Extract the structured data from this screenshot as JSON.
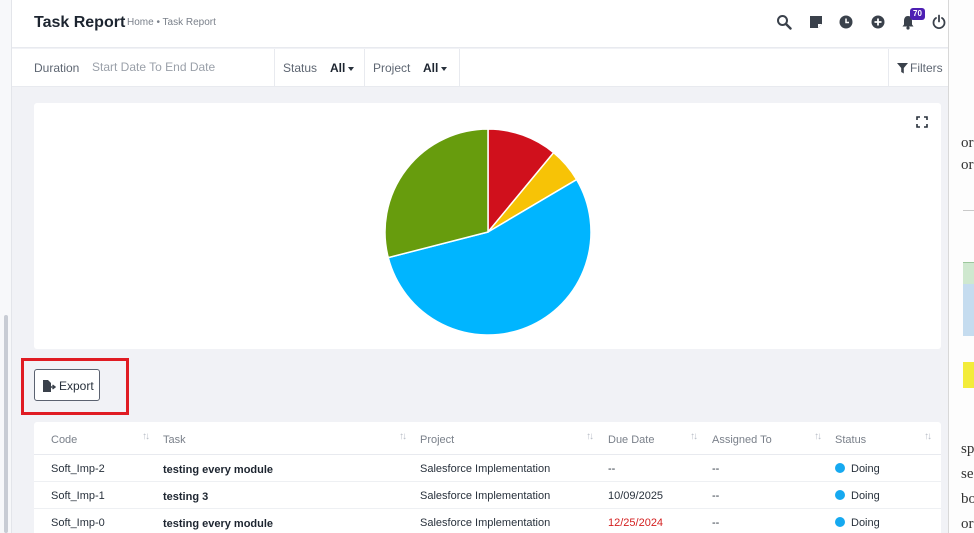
{
  "header": {
    "title": "Task Report",
    "breadcrumb": "Home • Task Report",
    "notification_count": "70"
  },
  "filters": {
    "duration_label": "Duration",
    "duration_placeholder": "Start Date To End Date",
    "status_label": "Status",
    "status_value": "All",
    "project_label": "Project",
    "project_value": "All",
    "filters_label": "Filters"
  },
  "chart_data": {
    "type": "pie",
    "title": "",
    "slices": [
      {
        "label": "red",
        "value": 11,
        "color": "#d0101c"
      },
      {
        "label": "yellow",
        "value": 5.5,
        "color": "#f7c306"
      },
      {
        "label": "blue",
        "value": 54.5,
        "color": "#00b5ff"
      },
      {
        "label": "green",
        "value": 29,
        "color": "#679c0d"
      }
    ]
  },
  "export": {
    "label": "Export"
  },
  "table": {
    "columns": [
      "Code",
      "Task",
      "Project",
      "Due Date",
      "Assigned To",
      "Status"
    ],
    "rows": [
      {
        "code": "Soft_Imp-2",
        "task": "testing every module",
        "project": "Salesforce Implementation",
        "due_date": "--",
        "assigned_to": "--",
        "status": "Doing"
      },
      {
        "code": "Soft_Imp-1",
        "task": "testing 3",
        "project": "Salesforce Implementation",
        "due_date": "10/09/2025",
        "assigned_to": "--",
        "status": "Doing"
      },
      {
        "code": "Soft_Imp-0",
        "task": "testing every module",
        "project": "Salesforce Implementation",
        "due_date": "12/25/2024",
        "assigned_to": "--",
        "status": "Doing"
      }
    ],
    "status_color": "#16a9f0",
    "overdue_color": "#d42020"
  },
  "background_window": {
    "fragments": [
      "or",
      "or",
      "sp",
      "se",
      "bo",
      "or"
    ]
  }
}
